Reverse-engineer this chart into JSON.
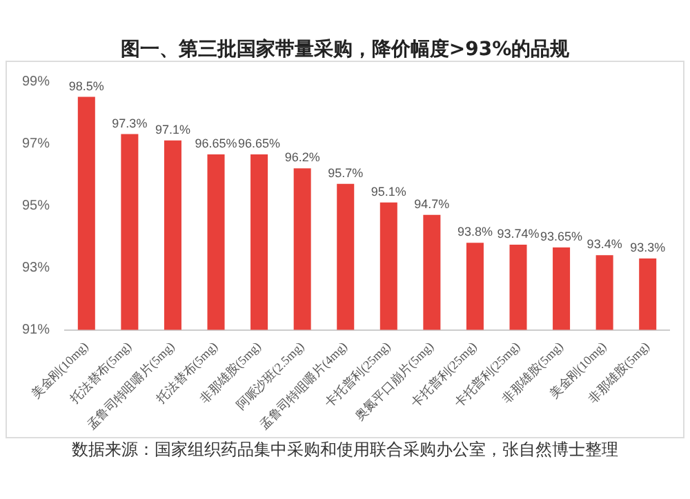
{
  "chart_data": {
    "type": "bar",
    "title": "图一、第三批国家带量采购，降价幅度>93%的品规",
    "categories": [
      "美金刚(10mg)",
      "托法替布(5mg)",
      "孟鲁司特咀嚼片(5mg)",
      "托法替布(5mg)",
      "非那雄胺(5mg)",
      "阿哌沙班(2.5mg)",
      "孟鲁司特咀嚼片(4mg)",
      "卡托普利(25mg)",
      "奥氮平口崩片(5mg)",
      "卡托普利(25mg)",
      "卡托普利(25mg)",
      "非那雄胺(5mg)",
      "美金刚(10mg)",
      "非那雄胺(5mg)"
    ],
    "values": [
      98.5,
      97.3,
      97.1,
      96.65,
      96.65,
      96.2,
      95.7,
      95.1,
      94.7,
      93.8,
      93.74,
      93.65,
      93.4,
      93.3
    ],
    "value_labels": [
      "98.5%",
      "97.3%",
      "97.1%",
      "96.65%",
      "96.65%",
      "96.2%",
      "95.7%",
      "95.1%",
      "94.7%",
      "93.8%",
      "93.74%",
      "93.65%",
      "93.4%",
      "93.3%"
    ],
    "color": "#e8403a",
    "ylim": [
      91,
      99
    ],
    "yticks": [
      {
        "value": 91,
        "label": "91%"
      },
      {
        "value": 93,
        "label": "93%"
      },
      {
        "value": 95,
        "label": "95%"
      },
      {
        "value": 97,
        "label": "97%"
      },
      {
        "value": 99,
        "label": "99%"
      }
    ],
    "grid": false,
    "annotations": [
      "数据来源：国家组织药品集中采购和使用联合采购办公室，张自然博士整理"
    ]
  }
}
